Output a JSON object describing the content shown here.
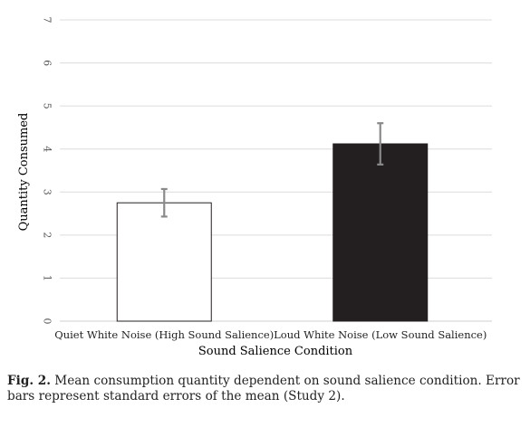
{
  "chart_data": {
    "type": "bar",
    "categories": [
      "Quiet White Noise (High Sound Salience)",
      "Loud White Noise (Low Sound Salience)"
    ],
    "values": [
      2.75,
      4.12
    ],
    "errors": [
      0.32,
      0.48
    ],
    "bar_colors": [
      "#ffffff",
      "#231f20"
    ],
    "bar_edge_color": "#231f20",
    "error_bar_color": "#8a8a8a",
    "xlabel": "Sound Salience Condition",
    "ylabel": "Quantity Consumed",
    "ylim": [
      0,
      7
    ],
    "yticks": [
      "0",
      "1",
      "2",
      "3",
      "4",
      "5",
      "6",
      "7"
    ],
    "ytick_label_rotation": "vertical",
    "grid": "horizontal",
    "legend": "none"
  },
  "caption": {
    "label": "Fig. 2.",
    "text": " Mean consumption quantity dependent on sound salience condition. Error bars represent standard errors of the mean (Study 2)."
  }
}
